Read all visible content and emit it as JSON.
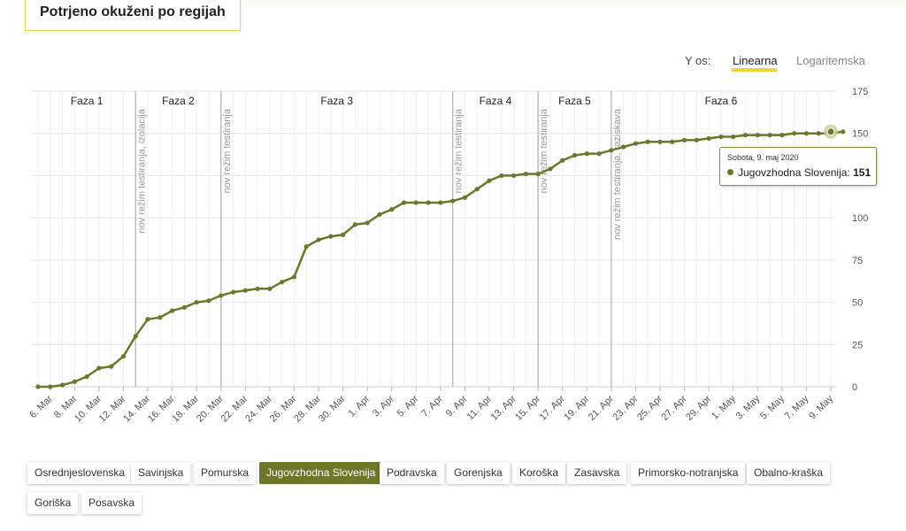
{
  "page_title": "Potrjeno okuženi po regijah",
  "y_axis_toggle": {
    "label": "Y os:",
    "linear": "Linearna",
    "log": "Logaritemska",
    "selected": "Linearna"
  },
  "colors": {
    "series": "#6d7629",
    "accent": "#f2d23a",
    "grid": "#e6e6e6",
    "phase_line": "#b5b5b5"
  },
  "tooltip": {
    "date": "Sobota, 9. maj 2020",
    "series": "Jugovzhodna Slovenija",
    "value_label": "151"
  },
  "regions": [
    "Osrednjeslovenska",
    "Savinjska",
    "Pomurska",
    "Jugovzhodna Slovenija",
    "Podravska",
    "Gorenjska",
    "Koroška",
    "Zasavska",
    "Primorsko-notranjska",
    "Obalno-kraška",
    "Goriška",
    "Posavska"
  ],
  "selected_region": "Jugovzhodna Slovenija",
  "chart_data": {
    "type": "line",
    "ylim": [
      0,
      175
    ],
    "yticks": [
      0,
      25,
      50,
      75,
      100,
      125,
      150,
      175
    ],
    "x_start": "2020-03-05",
    "x_end": "2020-05-09",
    "x_tick_labels": [
      "6. Mar",
      "8. Mar",
      "10. Mar",
      "12. Mar",
      "14. Mar",
      "16. Mar",
      "18. Mar",
      "20. Mar",
      "22. Mar",
      "24. Mar",
      "26. Mar",
      "28. Mar",
      "30. Mar",
      "1. Apr",
      "3. Apr",
      "5. Apr",
      "7. Apr",
      "9. Apr",
      "11. Apr",
      "13. Apr",
      "15. Apr",
      "17. Apr",
      "19. Apr",
      "21. Apr",
      "23. Apr",
      "25. Apr",
      "27. Apr",
      "29. Apr",
      "1. May",
      "3. May",
      "5. May",
      "7. May",
      "9. May"
    ],
    "series": [
      {
        "name": "Jugovzhodna Slovenija",
        "values": [
          0,
          0,
          1,
          3,
          6,
          11,
          12,
          18,
          30,
          40,
          41,
          45,
          47,
          50,
          51,
          54,
          56,
          57,
          58,
          58,
          62,
          65,
          83,
          87,
          89,
          90,
          96,
          97,
          102,
          105,
          109,
          109,
          109,
          109,
          110,
          112,
          117,
          122,
          125,
          125,
          126,
          126,
          129,
          134,
          137,
          138,
          138,
          140,
          142,
          144,
          145,
          145,
          145,
          146,
          146,
          147,
          148,
          148,
          149,
          149,
          149,
          149,
          150,
          150,
          150,
          150,
          151
        ]
      }
    ],
    "phases": [
      {
        "label": "Faza 1",
        "from": "2020-03-05",
        "to": "2020-03-13"
      },
      {
        "label": "Faza 2",
        "from": "2020-03-13",
        "to": "2020-03-20"
      },
      {
        "label": "Faza 3",
        "from": "2020-03-20",
        "to": "2020-04-08"
      },
      {
        "label": "Faza 4",
        "from": "2020-04-08",
        "to": "2020-04-15"
      },
      {
        "label": "Faza 5",
        "from": "2020-04-15",
        "to": "2020-04-21"
      },
      {
        "label": "Faza 6",
        "from": "2020-04-21",
        "to": "2020-05-09"
      }
    ],
    "markers": [
      {
        "date": "2020-03-13",
        "label": "nov režim testiranja, izolacija"
      },
      {
        "date": "2020-03-20",
        "label": "nov režim testiranja"
      },
      {
        "date": "2020-04-08",
        "label": "nov režim testiranja"
      },
      {
        "date": "2020-04-15",
        "label": "nov režim testiranja"
      },
      {
        "date": "2020-04-21",
        "label": "nov režim testiranja, raziskava"
      }
    ],
    "highlight_point": {
      "date": "2020-05-09",
      "value": 151
    }
  }
}
